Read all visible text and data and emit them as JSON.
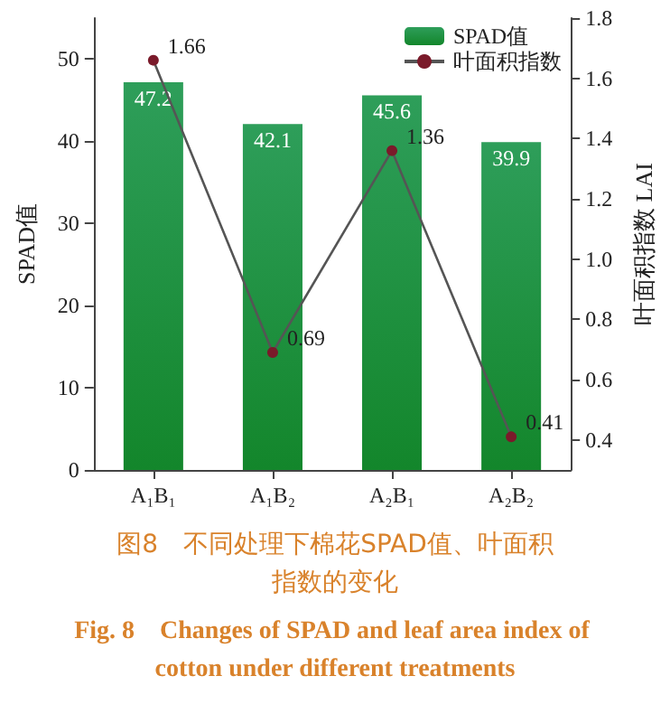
{
  "chart_data": {
    "type": "bar",
    "title": "图8　不同处理下棉花SPAD值、叶面积指数的变化",
    "subtitle": "Fig. 8　Changes of SPAD and leaf area index of cotton under different treatments",
    "categories": [
      "A₁B₁",
      "A₁B₂",
      "A₂B₁",
      "A₂B₂"
    ],
    "series": [
      {
        "name": "SPAD值",
        "color": "#2e9e5a",
        "values": [
          47.2,
          42.1,
          45.6,
          39.9
        ]
      },
      {
        "name": "叶面积指数",
        "type": "line",
        "axis": "y2",
        "color": "#7a1a2a",
        "values": [
          1.66,
          0.69,
          1.36,
          0.41
        ]
      }
    ],
    "ylabel": "SPAD值",
    "y2label": "叶面积指数 LAI",
    "ylim": [
      0,
      55
    ],
    "yticks": [
      0,
      10,
      20,
      30,
      40,
      50
    ],
    "y2lim": [
      0.3,
      1.8
    ],
    "y2ticks": [
      0.4,
      0.6,
      0.8,
      {
        "value": 1,
        "label": "1.0"
      },
      1.2,
      1.4,
      1.6,
      1.8
    ],
    "data_labels": true,
    "legend": "top right",
    "marker": "circle",
    "grid": false
  }
}
